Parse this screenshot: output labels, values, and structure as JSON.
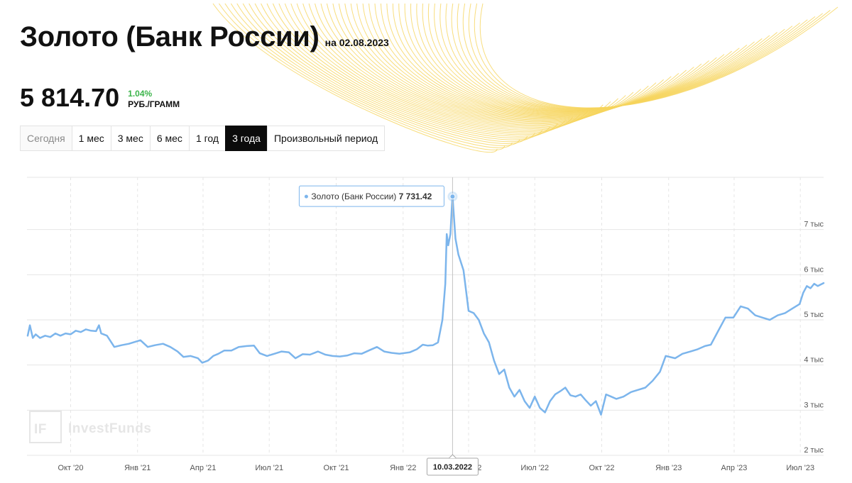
{
  "header": {
    "title": "Золото (Банк России)",
    "as_of": "на 02.08.2023",
    "price": "5 814.70",
    "change": "1.04%",
    "unit": "РУБ./ГРАММ"
  },
  "periods": [
    {
      "label": "Сегодня",
      "active": false
    },
    {
      "label": "1 мес",
      "active": false
    },
    {
      "label": "3 мес",
      "active": false
    },
    {
      "label": "6 мес",
      "active": false
    },
    {
      "label": "1 год",
      "active": false
    },
    {
      "label": "3 года",
      "active": true
    },
    {
      "label": "Произвольный период",
      "active": false
    }
  ],
  "colors": {
    "line": "#7cb5ec",
    "change_positive": "#3bb44a",
    "deco": "#f6d55c",
    "active_button": "#0b0b0b"
  },
  "watermark": "InvestFunds",
  "chart_data": {
    "type": "line",
    "series": [
      {
        "name": "Золото (Банк России)",
        "points": [
          [
            "2020-08-03",
            4650
          ],
          [
            "2020-08-06",
            4880
          ],
          [
            "2020-08-10",
            4600
          ],
          [
            "2020-08-14",
            4680
          ],
          [
            "2020-08-20",
            4600
          ],
          [
            "2020-08-27",
            4650
          ],
          [
            "2020-09-03",
            4620
          ],
          [
            "2020-09-10",
            4700
          ],
          [
            "2020-09-17",
            4650
          ],
          [
            "2020-09-24",
            4700
          ],
          [
            "2020-10-01",
            4680
          ],
          [
            "2020-10-08",
            4760
          ],
          [
            "2020-10-15",
            4730
          ],
          [
            "2020-10-22",
            4790
          ],
          [
            "2020-10-29",
            4760
          ],
          [
            "2020-11-05",
            4750
          ],
          [
            "2020-11-09",
            4880
          ],
          [
            "2020-11-12",
            4700
          ],
          [
            "2020-11-20",
            4650
          ],
          [
            "2020-11-30",
            4400
          ],
          [
            "2020-12-10",
            4440
          ],
          [
            "2020-12-20",
            4470
          ],
          [
            "2021-01-05",
            4550
          ],
          [
            "2021-01-15",
            4400
          ],
          [
            "2021-01-25",
            4440
          ],
          [
            "2021-02-05",
            4470
          ],
          [
            "2021-02-15",
            4400
          ],
          [
            "2021-02-25",
            4300
          ],
          [
            "2021-03-05",
            4180
          ],
          [
            "2021-03-15",
            4200
          ],
          [
            "2021-03-25",
            4150
          ],
          [
            "2021-03-31",
            4050
          ],
          [
            "2021-04-08",
            4100
          ],
          [
            "2021-04-15",
            4200
          ],
          [
            "2021-04-22",
            4250
          ],
          [
            "2021-04-30",
            4320
          ],
          [
            "2021-05-10",
            4320
          ],
          [
            "2021-05-20",
            4400
          ],
          [
            "2021-05-31",
            4420
          ],
          [
            "2021-06-10",
            4430
          ],
          [
            "2021-06-18",
            4260
          ],
          [
            "2021-06-28",
            4200
          ],
          [
            "2021-07-08",
            4250
          ],
          [
            "2021-07-18",
            4300
          ],
          [
            "2021-07-28",
            4280
          ],
          [
            "2021-08-06",
            4150
          ],
          [
            "2021-08-16",
            4240
          ],
          [
            "2021-08-26",
            4230
          ],
          [
            "2021-09-06",
            4300
          ],
          [
            "2021-09-16",
            4230
          ],
          [
            "2021-09-26",
            4200
          ],
          [
            "2021-10-06",
            4190
          ],
          [
            "2021-10-16",
            4210
          ],
          [
            "2021-10-26",
            4260
          ],
          [
            "2021-11-05",
            4250
          ],
          [
            "2021-11-16",
            4330
          ],
          [
            "2021-11-26",
            4400
          ],
          [
            "2021-12-06",
            4300
          ],
          [
            "2021-12-16",
            4270
          ],
          [
            "2021-12-27",
            4250
          ],
          [
            "2022-01-10",
            4280
          ],
          [
            "2022-01-20",
            4350
          ],
          [
            "2022-01-28",
            4450
          ],
          [
            "2022-02-04",
            4430
          ],
          [
            "2022-02-11",
            4440
          ],
          [
            "2022-02-18",
            4500
          ],
          [
            "2022-02-24",
            5000
          ],
          [
            "2022-02-28",
            5800
          ],
          [
            "2022-03-02",
            6900
          ],
          [
            "2022-03-04",
            6650
          ],
          [
            "2022-03-07",
            6900
          ],
          [
            "2022-03-09",
            7500
          ],
          [
            "2022-03-10",
            7731.42
          ],
          [
            "2022-03-14",
            6800
          ],
          [
            "2022-03-18",
            6450
          ],
          [
            "2022-03-25",
            6100
          ],
          [
            "2022-04-01",
            5200
          ],
          [
            "2022-04-08",
            5150
          ],
          [
            "2022-04-15",
            5000
          ],
          [
            "2022-04-22",
            4700
          ],
          [
            "2022-04-29",
            4500
          ],
          [
            "2022-05-06",
            4100
          ],
          [
            "2022-05-13",
            3800
          ],
          [
            "2022-05-20",
            3900
          ],
          [
            "2022-05-27",
            3500
          ],
          [
            "2022-06-03",
            3300
          ],
          [
            "2022-06-10",
            3450
          ],
          [
            "2022-06-17",
            3200
          ],
          [
            "2022-06-24",
            3050
          ],
          [
            "2022-07-01",
            3300
          ],
          [
            "2022-07-08",
            3050
          ],
          [
            "2022-07-15",
            2950
          ],
          [
            "2022-07-22",
            3200
          ],
          [
            "2022-07-29",
            3350
          ],
          [
            "2022-08-05",
            3420
          ],
          [
            "2022-08-12",
            3500
          ],
          [
            "2022-08-19",
            3330
          ],
          [
            "2022-08-26",
            3300
          ],
          [
            "2022-09-02",
            3350
          ],
          [
            "2022-09-09",
            3220
          ],
          [
            "2022-09-16",
            3100
          ],
          [
            "2022-09-23",
            3200
          ],
          [
            "2022-09-30",
            2900
          ],
          [
            "2022-10-07",
            3350
          ],
          [
            "2022-10-14",
            3300
          ],
          [
            "2022-10-21",
            3250
          ],
          [
            "2022-10-31",
            3300
          ],
          [
            "2022-11-10",
            3400
          ],
          [
            "2022-11-20",
            3450
          ],
          [
            "2022-11-30",
            3500
          ],
          [
            "2022-12-10",
            3650
          ],
          [
            "2022-12-20",
            3850
          ],
          [
            "2022-12-28",
            4200
          ],
          [
            "2023-01-10",
            4150
          ],
          [
            "2023-01-20",
            4250
          ],
          [
            "2023-01-31",
            4300
          ],
          [
            "2023-02-10",
            4350
          ],
          [
            "2023-02-20",
            4420
          ],
          [
            "2023-02-28",
            4450
          ],
          [
            "2023-03-10",
            4750
          ],
          [
            "2023-03-20",
            5050
          ],
          [
            "2023-03-31",
            5050
          ],
          [
            "2023-04-10",
            5300
          ],
          [
            "2023-04-20",
            5250
          ],
          [
            "2023-04-30",
            5100
          ],
          [
            "2023-05-10",
            5050
          ],
          [
            "2023-05-20",
            5000
          ],
          [
            "2023-05-31",
            5100
          ],
          [
            "2023-06-10",
            5150
          ],
          [
            "2023-06-20",
            5250
          ],
          [
            "2023-06-30",
            5350
          ],
          [
            "2023-07-05",
            5600
          ],
          [
            "2023-07-10",
            5750
          ],
          [
            "2023-07-15",
            5700
          ],
          [
            "2023-07-20",
            5800
          ],
          [
            "2023-07-25",
            5750
          ],
          [
            "2023-08-02",
            5814.7
          ]
        ]
      }
    ],
    "x_range": [
      "2020-08-02",
      "2023-08-02"
    ],
    "ylim": [
      2000,
      8000
    ],
    "y_ticks": [
      {
        "value": 2000,
        "label": "2 тыс"
      },
      {
        "value": 3000,
        "label": "3 тыс"
      },
      {
        "value": 4000,
        "label": "4 тыс"
      },
      {
        "value": 5000,
        "label": "5 тыс"
      },
      {
        "value": 6000,
        "label": "6 тыс"
      },
      {
        "value": 7000,
        "label": "7 тыс"
      }
    ],
    "x_ticks": [
      {
        "date": "2020-10-01",
        "label": "Окт '20"
      },
      {
        "date": "2021-01-01",
        "label": "Янв '21"
      },
      {
        "date": "2021-04-01",
        "label": "Апр '21"
      },
      {
        "date": "2021-07-01",
        "label": "Июл '21"
      },
      {
        "date": "2021-10-01",
        "label": "Окт '21"
      },
      {
        "date": "2022-01-01",
        "label": "Янв '22"
      },
      {
        "date": "2022-04-01",
        "label": "Апр '22"
      },
      {
        "date": "2022-07-01",
        "label": "Июл '22"
      },
      {
        "date": "2022-10-01",
        "label": "Окт '22"
      },
      {
        "date": "2023-01-01",
        "label": "Янв '23"
      },
      {
        "date": "2023-04-01",
        "label": "Апр '23"
      },
      {
        "date": "2023-07-01",
        "label": "Июл '23"
      }
    ],
    "grid": true,
    "tooltip": {
      "date": "2022-03-10",
      "date_label": "10.03.2022",
      "name": "Золото (Банк России)",
      "value": 7731.42,
      "value_label": "7 731.42"
    }
  }
}
